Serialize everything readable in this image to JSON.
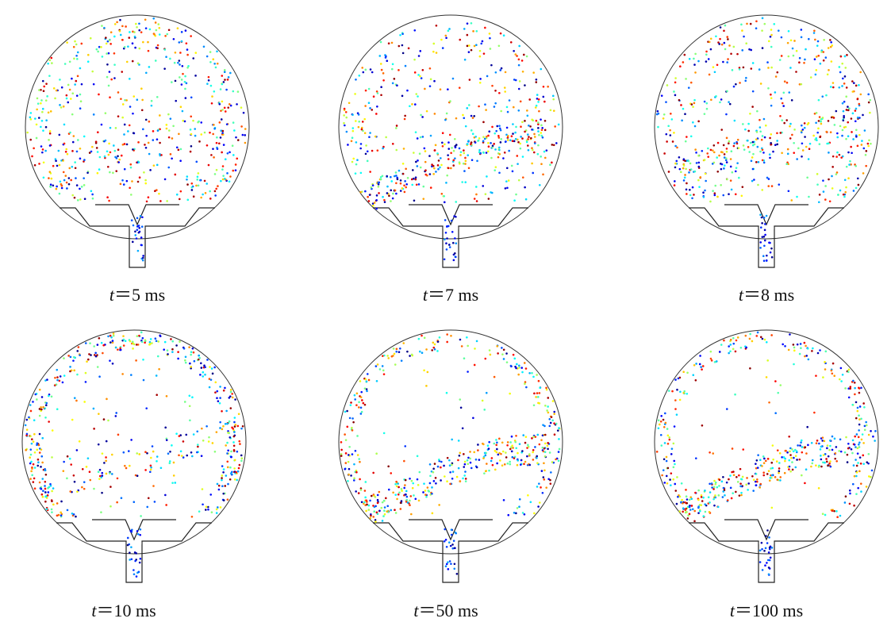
{
  "panels": [
    {
      "variable": "t",
      "equals": "＝",
      "time": "5 ms"
    },
    {
      "variable": "t",
      "equals": "＝",
      "time": "7 ms"
    },
    {
      "variable": "t",
      "equals": "＝",
      "time": "8 ms"
    },
    {
      "variable": "t",
      "equals": "＝",
      "time": "10 ms"
    },
    {
      "variable": "t",
      "equals": "＝",
      "time": "50 ms"
    },
    {
      "variable": "t",
      "equals": "＝",
      "time": "100 ms"
    }
  ]
}
